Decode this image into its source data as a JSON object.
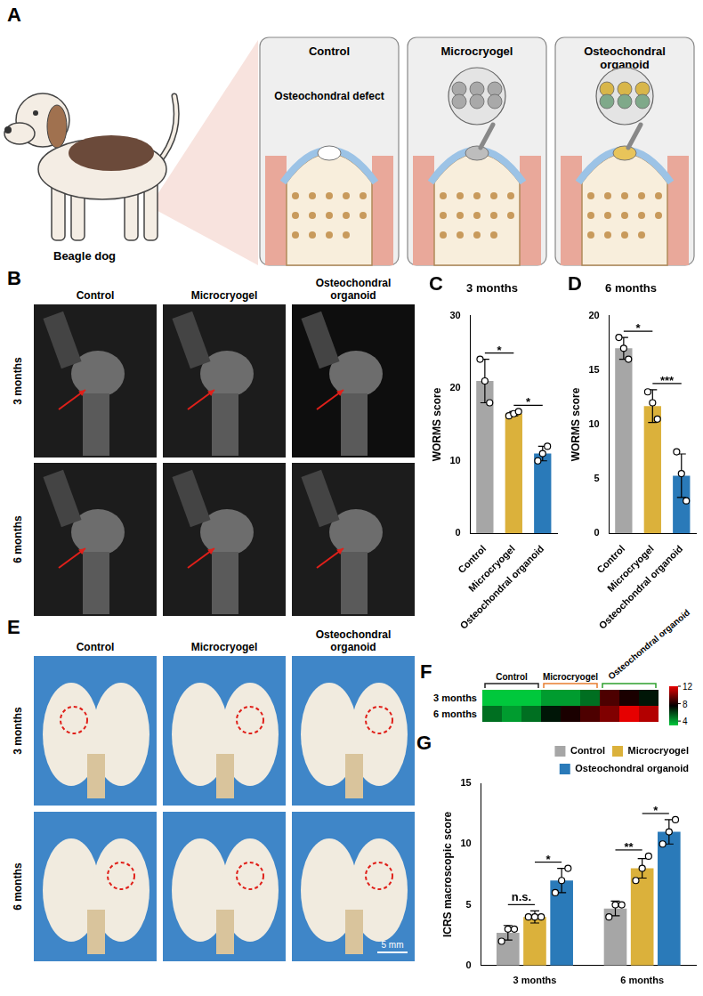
{
  "figure": {
    "A": {
      "label": "A",
      "animal": "Beagle dog",
      "groups": [
        "Control",
        "Microcryogel",
        "Osteochondral organoid"
      ],
      "defect": "Osteochondral defect"
    },
    "B": {
      "label": "B",
      "columns": [
        "Control",
        "Microcryogel",
        "Osteochondral organoid"
      ],
      "rows": [
        "3 months",
        "6 months"
      ]
    },
    "E": {
      "label": "E",
      "columns": [
        "Control",
        "Microcryogel",
        "Osteochondral organoid"
      ],
      "rows": [
        "3 months",
        "6 months"
      ],
      "scale_bar": "5 mm"
    }
  },
  "chart_data": [
    {
      "panel": "C",
      "type": "bar",
      "title": "3 months",
      "y_label": "WORMS score",
      "categories": [
        "Control",
        "Microcryogel",
        "Osteochondral organoid"
      ],
      "values": [
        21,
        16.5,
        11
      ],
      "errors": [
        3,
        0.3,
        1
      ],
      "points": [
        [
          24,
          21,
          18
        ],
        [
          16.2,
          16.5,
          16.8
        ],
        [
          10,
          11,
          12
        ]
      ],
      "colors": [
        "#a6a6a6",
        "#dbb13b",
        "#2a7ab9"
      ],
      "ylim": [
        0,
        30
      ],
      "yticks": [
        0,
        10,
        20,
        30
      ],
      "grid": false,
      "significance": [
        {
          "from": 0,
          "to": 1,
          "label": "*"
        },
        {
          "from": 1,
          "to": 2,
          "label": "*"
        }
      ]
    },
    {
      "panel": "D",
      "type": "bar",
      "title": "6 months",
      "y_label": "WORMS score",
      "categories": [
        "Control",
        "Microcryogel",
        "Osteochondral organoid"
      ],
      "values": [
        17,
        11.7,
        5.3
      ],
      "errors": [
        1,
        1.5,
        2
      ],
      "points": [
        [
          18,
          17,
          16
        ],
        [
          13,
          12,
          10.5
        ],
        [
          7.5,
          5.5,
          3
        ]
      ],
      "colors": [
        "#a6a6a6",
        "#dbb13b",
        "#2a7ab9"
      ],
      "ylim": [
        0,
        20
      ],
      "yticks": [
        0,
        5,
        10,
        15,
        20
      ],
      "grid": false,
      "significance": [
        {
          "from": 0,
          "to": 1,
          "label": "*"
        },
        {
          "from": 1,
          "to": 2,
          "label": "***"
        }
      ]
    },
    {
      "panel": "F",
      "type": "heatmap",
      "rows": [
        "3 months",
        "6 months"
      ],
      "groups": [
        "Control",
        "Microcryogel",
        "Osteochondral organoid"
      ],
      "cells": [
        [
          3,
          2,
          3,
          4,
          4,
          5,
          9,
          8,
          7
        ],
        [
          5,
          4,
          5,
          7,
          8,
          9,
          10,
          12,
          11
        ]
      ],
      "colorbar": {
        "range": [
          3,
          12
        ],
        "ticks": [
          4,
          8,
          12
        ]
      }
    },
    {
      "panel": "G",
      "type": "bar",
      "y_label": "ICRS macroscopic score",
      "categories": [
        "3 months",
        "6 months"
      ],
      "series": [
        {
          "name": "Control",
          "color": "#a6a6a6",
          "values": [
            2.7,
            4.7
          ],
          "errors": [
            0.6,
            0.6
          ],
          "points": [
            [
              2,
              3,
              3
            ],
            [
              4,
              5,
              5
            ]
          ]
        },
        {
          "name": "Microcryogel",
          "color": "#dbb13b",
          "values": [
            4,
            8
          ],
          "errors": [
            0.5,
            0.8
          ],
          "points": [
            [
              4,
              4,
              4
            ],
            [
              7,
              8,
              9
            ]
          ]
        },
        {
          "name": "Osteochondral organoid",
          "color": "#2a7ab9",
          "values": [
            7,
            11
          ],
          "errors": [
            1,
            1
          ],
          "points": [
            [
              6,
              7,
              8
            ],
            [
              10,
              11,
              12
            ]
          ]
        }
      ],
      "ylim": [
        0,
        15
      ],
      "yticks": [
        0,
        5,
        10,
        15
      ],
      "grid": false,
      "legend": "upper right",
      "significance": [
        {
          "category": 0,
          "from": 0,
          "to": 1,
          "label": "n.s."
        },
        {
          "category": 0,
          "from": 1,
          "to": 2,
          "label": "*"
        },
        {
          "category": 1,
          "from": 0,
          "to": 1,
          "label": "**"
        },
        {
          "category": 1,
          "from": 1,
          "to": 2,
          "label": "*"
        }
      ]
    }
  ]
}
